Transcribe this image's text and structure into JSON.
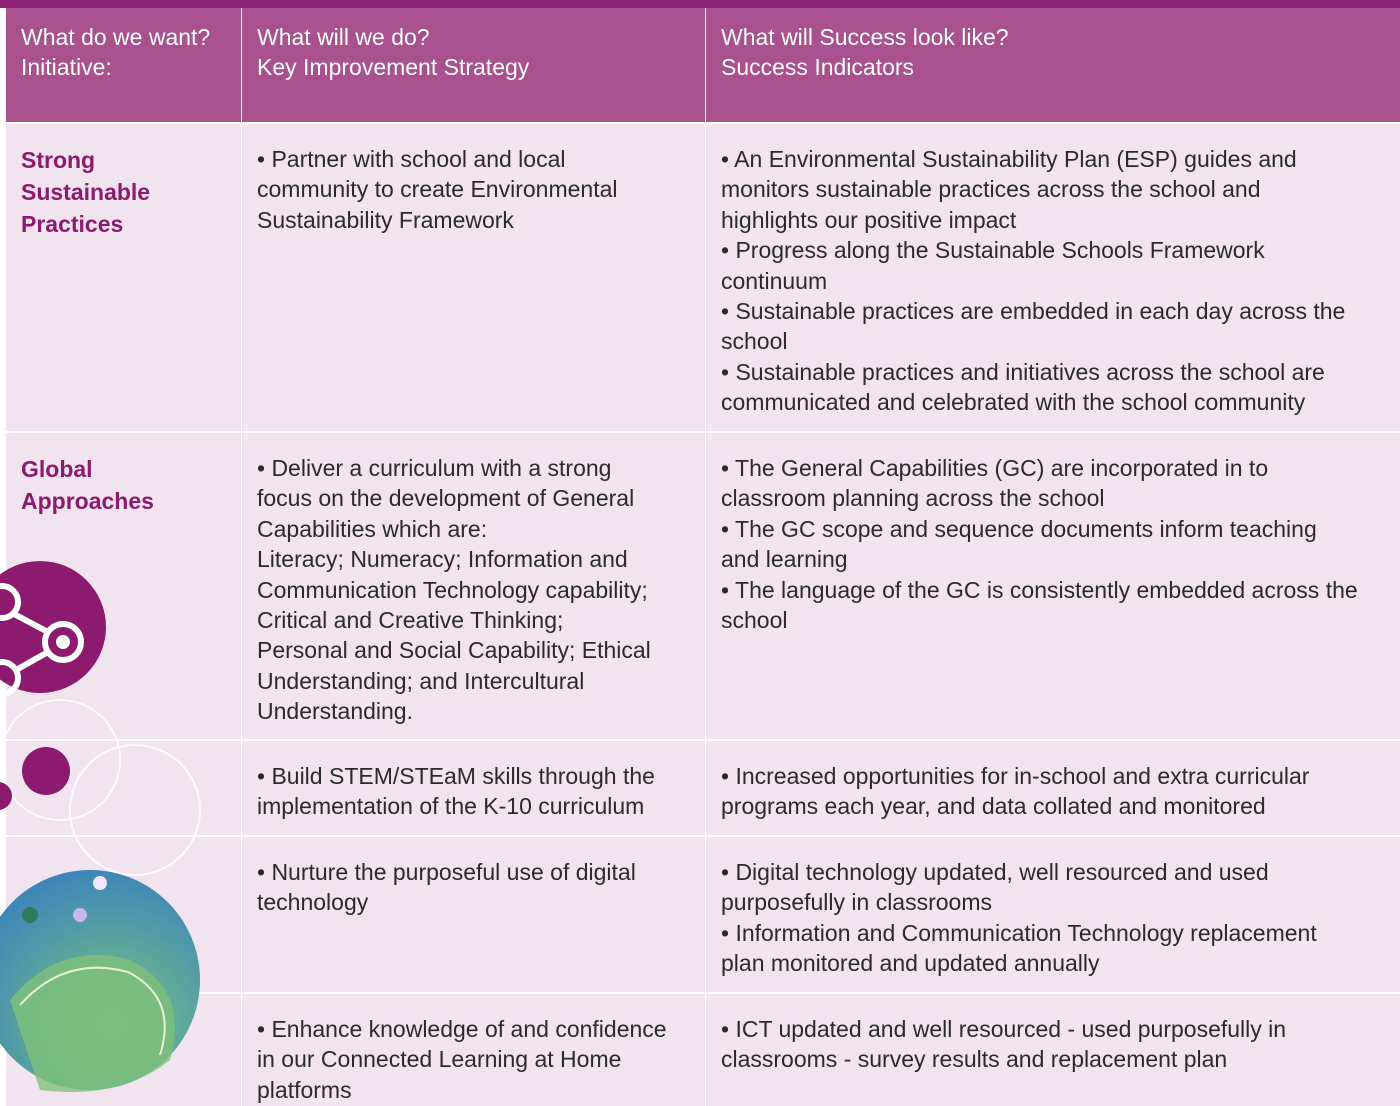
{
  "table": {
    "header": [
      [
        "What do we want?",
        "Initiative:"
      ],
      [
        "What will we do?",
        "Key Improvement Strategy"
      ],
      [
        "What will Success look like?",
        "Success Indicators"
      ]
    ],
    "rows": [
      {
        "initiative": [
          "Strong",
          "Sustainable",
          "Practices"
        ],
        "strategy": [
          "• Partner with school and local",
          "community to create Environmental",
          "Sustainability Framework"
        ],
        "indicators": [
          "• An Environmental Sustainability Plan (ESP) guides and",
          "monitors sustainable practices across the school and",
          "highlights our positive impact",
          "• Progress along the Sustainable Schools Framework",
          "continuum",
          "• Sustainable practices are embedded in each day across the",
          "school",
          "• Sustainable practices and initiatives across the school are",
          "communicated and celebrated with the school community"
        ]
      },
      {
        "initiative": [
          "Global",
          "Approaches"
        ],
        "strategy": [
          "• Deliver a curriculum with a strong",
          "focus on the development of General",
          "Capabilities which are:",
          "Literacy; Numeracy; Information and",
          "Communication Technology capability;",
          "Critical and Creative Thinking;",
          "Personal and Social Capability; Ethical",
          "Understanding; and Intercultural",
          "Understanding."
        ],
        "indicators": [
          "• The General Capabilities (GC) are incorporated in to",
          "classroom planning across the school",
          "• The GC scope and sequence documents inform teaching",
          "and learning",
          "• The language of the GC is consistently embedded across the",
          "school"
        ]
      },
      {
        "initiative": [],
        "strategy": [
          "• Build STEM/STEaM skills through the",
          "implementation of the K-10 curriculum"
        ],
        "indicators": [
          "• Increased opportunities for in-school and extra curricular",
          "programs each year, and data collated and monitored"
        ]
      },
      {
        "initiative": [],
        "strategy": [
          "• Nurture the purposeful use of digital",
          "technology"
        ],
        "indicators": [
          "• Digital technology updated, well resourced and used",
          "purposefully in classrooms",
          "• Information and Communication Technology replacement",
          "plan monitored and updated annually"
        ]
      },
      {
        "initiative": [],
        "strategy": [
          "• Enhance knowledge of and confidence",
          "in our Connected Learning at Home",
          "platforms"
        ],
        "indicators": [
          "• ICT updated and well resourced - used purposefully in",
          "classrooms - survey results and replacement plan"
        ]
      }
    ]
  }
}
